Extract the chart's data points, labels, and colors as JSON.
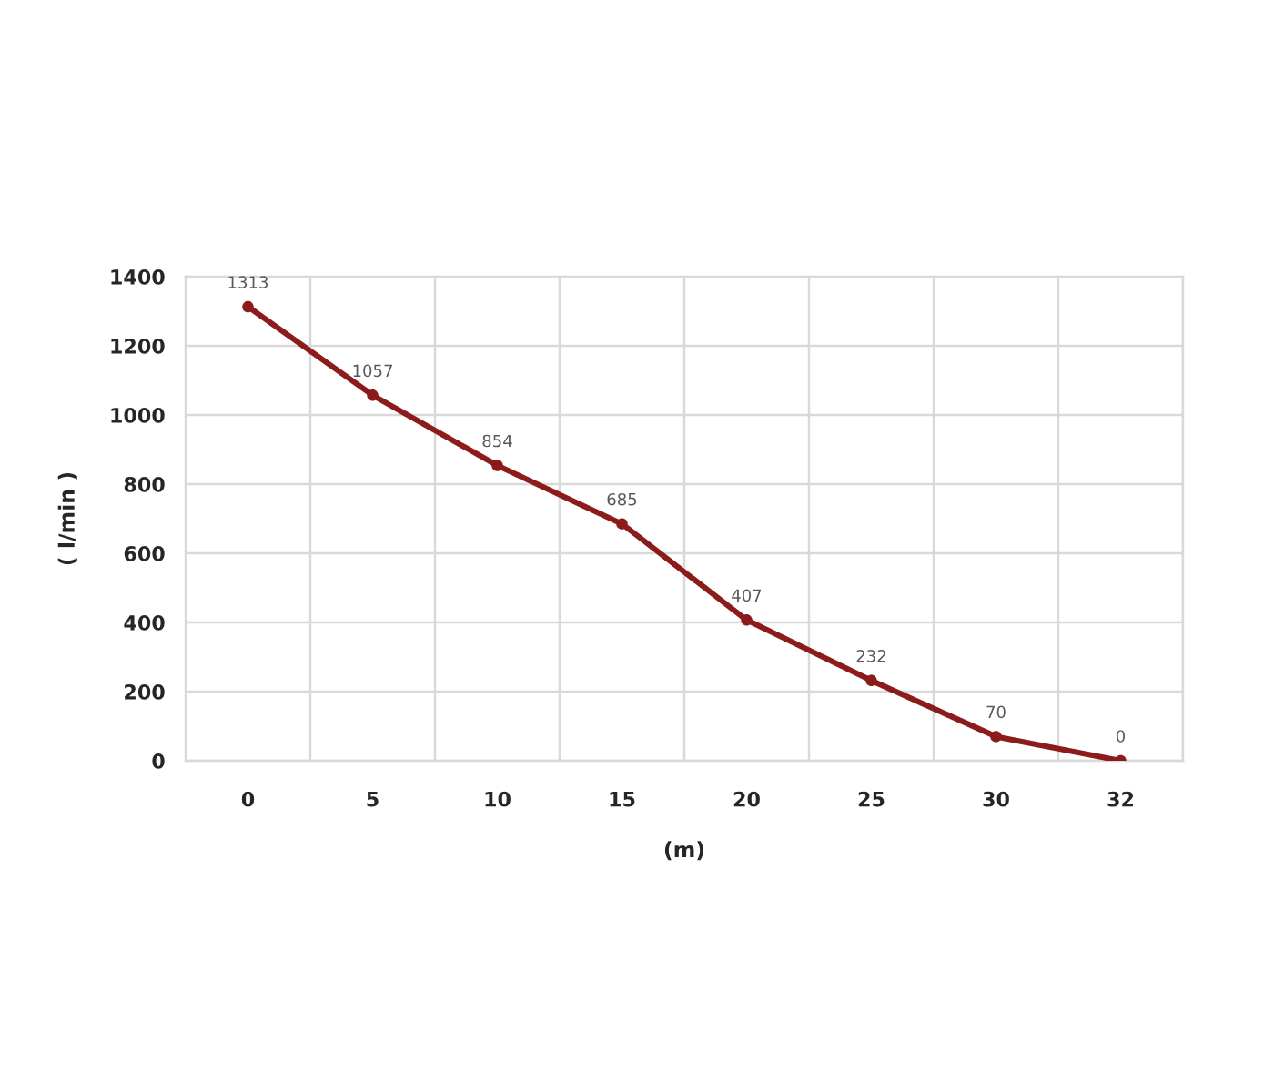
{
  "chart_data": {
    "type": "line",
    "xlabel": "(m)",
    "ylabel": "( l/min )",
    "categories": [
      "0",
      "5",
      "10",
      "15",
      "20",
      "25",
      "30",
      "32"
    ],
    "series": [
      {
        "color": "#8c1c1c",
        "values": [
          1313,
          1057,
          854,
          685,
          407,
          232,
          70,
          0
        ]
      }
    ],
    "ylim": [
      0,
      1400
    ],
    "yticks": [
      0,
      200,
      400,
      600,
      800,
      1000,
      1200,
      1400
    ],
    "grid": true,
    "marker": "circle",
    "line_style": "solid",
    "data_labels": true
  }
}
